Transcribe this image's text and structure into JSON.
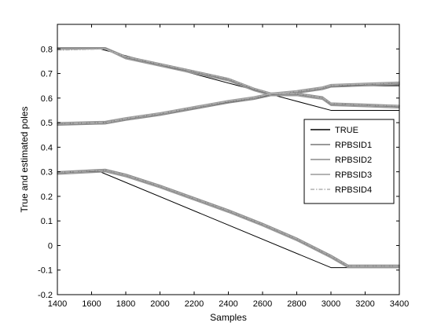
{
  "chart_data": {
    "type": "line",
    "title": "",
    "xlabel": "Samples",
    "ylabel": "True and estimated poles",
    "xlim": [
      1400,
      3400
    ],
    "ylim": [
      -0.2,
      0.9
    ],
    "xticks": [
      1400,
      1600,
      1800,
      2000,
      2200,
      2400,
      2600,
      2800,
      3000,
      3200,
      3400
    ],
    "yticks": [
      -0.2,
      -0.1,
      0,
      0.1,
      0.2,
      0.3,
      0.4,
      0.5,
      0.6,
      0.7,
      0.8
    ],
    "grid": false,
    "legend_position": "right",
    "legend": [
      "TRUE",
      "RPBSID1",
      "RPBSID2",
      "RPBSID3",
      "RPBSID4"
    ],
    "series": [
      {
        "name": "TRUE",
        "color": "#000000",
        "style": "solid",
        "tracks": [
          {
            "x": [
              1400,
              1650,
              3000,
              3400
            ],
            "y": [
              0.8,
              0.8,
              0.55,
              0.55
            ]
          },
          {
            "x": [
              1400,
              1650,
              3000,
              3400
            ],
            "y": [
              0.5,
              0.5,
              0.65,
              0.65
            ]
          },
          {
            "x": [
              1400,
              1650,
              3000,
              3400
            ],
            "y": [
              0.3,
              0.3,
              -0.09,
              -0.09
            ]
          }
        ]
      },
      {
        "name": "RPBSID1",
        "color": "#777777",
        "style": "solid",
        "tracks": [
          {
            "x": [
              1400,
              1680,
              1800,
              2000,
              2200,
              2400,
              2550,
              2650,
              2800,
              2950,
              3000,
              3200,
              3400
            ],
            "y": [
              0.8,
              0.8,
              0.765,
              0.735,
              0.705,
              0.675,
              0.635,
              0.615,
              0.615,
              0.6,
              0.575,
              0.57,
              0.565
            ]
          },
          {
            "x": [
              1400,
              1680,
              1800,
              2000,
              2200,
              2400,
              2550,
              2650,
              2800,
              2950,
              3000,
              3200,
              3400
            ],
            "y": [
              0.495,
              0.5,
              0.515,
              0.535,
              0.56,
              0.585,
              0.6,
              0.615,
              0.625,
              0.64,
              0.65,
              0.655,
              0.66
            ]
          },
          {
            "x": [
              1400,
              1680,
              1800,
              2000,
              2200,
              2400,
              2600,
              2800,
              3000,
              3100,
              3400
            ],
            "y": [
              0.295,
              0.305,
              0.285,
              0.24,
              0.19,
              0.14,
              0.085,
              0.025,
              -0.045,
              -0.085,
              -0.085
            ]
          }
        ]
      },
      {
        "name": "RPBSID2",
        "color": "#8a8a8a",
        "style": "solid",
        "tracks": [
          {
            "x": [
              1400,
              1680,
              1800,
              2000,
              2200,
              2400,
              2550,
              2650,
              2800,
              2950,
              3000,
              3200,
              3400
            ],
            "y": [
              0.805,
              0.805,
              0.77,
              0.74,
              0.71,
              0.68,
              0.64,
              0.62,
              0.62,
              0.605,
              0.58,
              0.575,
              0.57
            ]
          },
          {
            "x": [
              1400,
              1680,
              1800,
              2000,
              2200,
              2400,
              2550,
              2650,
              2800,
              2950,
              3000,
              3200,
              3400
            ],
            "y": [
              0.49,
              0.495,
              0.51,
              0.53,
              0.555,
              0.58,
              0.595,
              0.61,
              0.62,
              0.635,
              0.645,
              0.65,
              0.655
            ]
          },
          {
            "x": [
              1400,
              1680,
              1800,
              2000,
              2200,
              2400,
              2600,
              2800,
              3000,
              3100,
              3400
            ],
            "y": [
              0.3,
              0.31,
              0.29,
              0.245,
              0.195,
              0.145,
              0.09,
              0.03,
              -0.04,
              -0.08,
              -0.08
            ]
          }
        ]
      },
      {
        "name": "RPBSID3",
        "color": "#9a9a9a",
        "style": "solid",
        "tracks": [
          {
            "x": [
              1400,
              1680,
              1800,
              2000,
              2200,
              2400,
              2550,
              2650,
              2800,
              2950,
              3000,
              3200,
              3400
            ],
            "y": [
              0.8,
              0.8,
              0.76,
              0.73,
              0.7,
              0.67,
              0.63,
              0.61,
              0.61,
              0.595,
              0.57,
              0.565,
              0.56
            ]
          },
          {
            "x": [
              1400,
              1680,
              1800,
              2000,
              2200,
              2400,
              2550,
              2650,
              2800,
              2950,
              3000,
              3200,
              3400
            ],
            "y": [
              0.5,
              0.505,
              0.52,
              0.54,
              0.565,
              0.59,
              0.605,
              0.62,
              0.63,
              0.645,
              0.655,
              0.66,
              0.665
            ]
          },
          {
            "x": [
              1400,
              1680,
              1800,
              2000,
              2200,
              2400,
              2600,
              2800,
              3000,
              3100,
              3400
            ],
            "y": [
              0.29,
              0.3,
              0.28,
              0.235,
              0.185,
              0.135,
              0.08,
              0.02,
              -0.05,
              -0.09,
              -0.09
            ]
          }
        ]
      },
      {
        "name": "RPBSID4",
        "color": "#b0b0b0",
        "style": "dashdot",
        "tracks": [
          {
            "x": [
              1400,
              1680,
              1800,
              2000,
              2200,
              2400,
              2550,
              2650,
              2800,
              2950,
              3000,
              3200,
              3400
            ],
            "y": [
              0.795,
              0.8,
              0.768,
              0.738,
              0.708,
              0.678,
              0.638,
              0.618,
              0.618,
              0.602,
              0.578,
              0.572,
              0.568
            ]
          },
          {
            "x": [
              1400,
              1680,
              1800,
              2000,
              2200,
              2400,
              2550,
              2650,
              2800,
              2950,
              3000,
              3200,
              3400
            ],
            "y": [
              0.497,
              0.5,
              0.517,
              0.537,
              0.562,
              0.587,
              0.602,
              0.617,
              0.627,
              0.642,
              0.652,
              0.657,
              0.662
            ]
          },
          {
            "x": [
              1400,
              1680,
              1800,
              2000,
              2200,
              2400,
              2600,
              2800,
              3000,
              3100,
              3400
            ],
            "y": [
              0.297,
              0.307,
              0.287,
              0.242,
              0.192,
              0.142,
              0.087,
              0.027,
              -0.043,
              -0.083,
              -0.083
            ]
          }
        ]
      }
    ]
  }
}
